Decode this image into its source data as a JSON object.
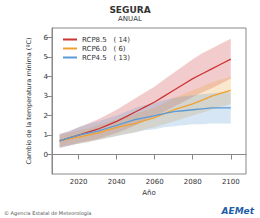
{
  "chart_data": {
    "type": "line",
    "title": "SEGURA",
    "subtitle": "ANUAL",
    "x_label": "Año",
    "y_label": "Cambio de la temperatura mínima (ºC)",
    "x": [
      2010,
      2015,
      2020,
      2025,
      2030,
      2035,
      2040,
      2045,
      2050,
      2055,
      2060,
      2065,
      2070,
      2075,
      2080,
      2085,
      2090,
      2095,
      2100
    ],
    "series": [
      {
        "name": "RCP8.5   ( 14)",
        "color": "#cc3333",
        "values": [
          0.7,
          0.85,
          1.0,
          1.15,
          1.3,
          1.5,
          1.7,
          1.95,
          2.2,
          2.45,
          2.7,
          3.0,
          3.3,
          3.6,
          3.9,
          4.15,
          4.4,
          4.65,
          4.9
        ],
        "lower": [
          0.35,
          0.45,
          0.6,
          0.7,
          0.8,
          0.95,
          1.1,
          1.3,
          1.5,
          1.75,
          1.95,
          2.2,
          2.45,
          2.7,
          2.95,
          3.2,
          3.4,
          3.65,
          3.9
        ],
        "upper": [
          1.05,
          1.2,
          1.4,
          1.6,
          1.8,
          2.05,
          2.3,
          2.6,
          2.9,
          3.2,
          3.5,
          3.85,
          4.2,
          4.55,
          4.9,
          5.2,
          5.45,
          5.7,
          5.95
        ]
      },
      {
        "name": "RCP6.0   ( 6)",
        "color": "#f0a030",
        "values": [
          0.7,
          0.8,
          0.9,
          1.0,
          1.1,
          1.25,
          1.4,
          1.5,
          1.6,
          1.75,
          1.9,
          2.1,
          2.3,
          2.45,
          2.6,
          2.8,
          3.0,
          3.15,
          3.3
        ],
        "lower": [
          0.4,
          0.5,
          0.55,
          0.65,
          0.75,
          0.85,
          0.95,
          1.05,
          1.15,
          1.3,
          1.4,
          1.55,
          1.7,
          1.85,
          2.0,
          2.15,
          2.3,
          2.45,
          2.6
        ],
        "upper": [
          1.0,
          1.1,
          1.25,
          1.35,
          1.5,
          1.65,
          1.8,
          1.95,
          2.1,
          2.25,
          2.4,
          2.65,
          2.9,
          3.1,
          3.3,
          3.5,
          3.7,
          3.85,
          4.0
        ]
      },
      {
        "name": "RCP4.5   ( 13)",
        "color": "#5b9bd5",
        "values": [
          0.7,
          0.85,
          1.0,
          1.1,
          1.2,
          1.35,
          1.5,
          1.65,
          1.8,
          1.9,
          2.0,
          2.1,
          2.2,
          2.25,
          2.3,
          2.35,
          2.4,
          2.4,
          2.4
        ],
        "lower": [
          0.35,
          0.45,
          0.55,
          0.65,
          0.75,
          0.85,
          0.95,
          1.05,
          1.15,
          1.25,
          1.3,
          1.4,
          1.45,
          1.5,
          1.55,
          1.55,
          1.6,
          1.6,
          1.6
        ],
        "upper": [
          1.05,
          1.2,
          1.4,
          1.55,
          1.7,
          1.85,
          2.0,
          2.2,
          2.4,
          2.55,
          2.65,
          2.8,
          2.9,
          3.0,
          3.05,
          3.1,
          3.15,
          3.2,
          3.2
        ]
      }
    ],
    "xlim": [
      2006,
      2108
    ],
    "xticks": [
      2020,
      2040,
      2060,
      2080,
      2100
    ],
    "ylim": [
      -1,
      6.5
    ],
    "yticks": [
      0,
      1,
      2,
      3,
      4,
      5,
      6
    ],
    "grid": false,
    "legend": "top-left",
    "annotations": [
      "© Agencia Estatal de Meteorología",
      "AEMet"
    ]
  }
}
